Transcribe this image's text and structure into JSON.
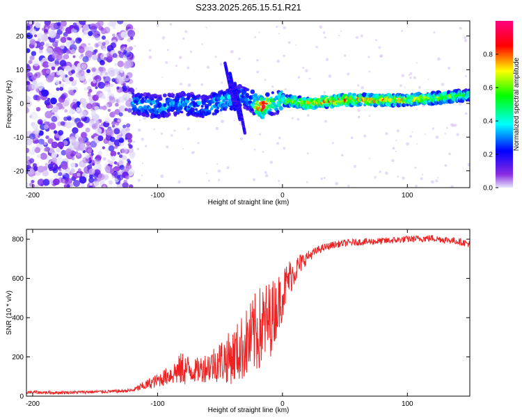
{
  "title": "S233.2025.265.15.51.R21",
  "colors": {
    "snr_line": "#ee2222",
    "colormap": [
      "#e6e6fa",
      "#8a2be2",
      "#0000ff",
      "#00ffff",
      "#00ff00",
      "#ffff00",
      "#ff0000",
      "#ff00ff"
    ]
  },
  "chart_data": [
    {
      "type": "heatmap",
      "title": "S233.2025.265.15.51.R21",
      "xlabel": "Height of straight line (km)",
      "ylabel": "Frequency (Hz)",
      "xlim": [
        -205,
        150
      ],
      "ylim": [
        -25,
        24.5
      ],
      "x_ticks": [
        -200,
        -100,
        0,
        100
      ],
      "x_tick_labels": [
        "-200",
        "-100",
        "0",
        "100"
      ],
      "y_ticks": [
        -20,
        -10,
        0,
        10,
        20
      ],
      "y_tick_labels": [
        "-20",
        "-10",
        "0",
        "10",
        "20"
      ],
      "colorbar": {
        "label": "Normalized spectral amplitude",
        "range": [
          0,
          1
        ],
        "ticks": [
          0.0,
          0.2,
          0.4,
          0.6,
          0.8
        ],
        "tick_labels": [
          "0.0",
          "0.2",
          "0.4",
          "0.6",
          "0.8"
        ]
      },
      "noise_region_x": [
        -205,
        -120
      ],
      "ridge": {
        "x": [
          -120,
          -100,
          -80,
          -60,
          -45,
          -35,
          -25,
          -20,
          -15,
          -10,
          -5,
          0,
          20,
          50,
          80,
          100,
          120,
          150
        ],
        "frequency": [
          0,
          -1,
          0,
          -1,
          1,
          2,
          1,
          -1,
          -1,
          0,
          0,
          1,
          0,
          1,
          1,
          1,
          1.5,
          2.5
        ],
        "amplitude": [
          0.3,
          0.3,
          0.28,
          0.3,
          0.35,
          0.3,
          0.3,
          0.7,
          0.8,
          0.6,
          0.4,
          0.5,
          0.65,
          0.75,
          0.7,
          0.65,
          0.6,
          0.45
        ]
      }
    },
    {
      "type": "line",
      "xlabel": "Height of straight line (km)",
      "ylabel": "SNR (10 * v/v)",
      "xlim": [
        -205,
        150
      ],
      "ylim": [
        0,
        850
      ],
      "x_ticks": [
        -200,
        -100,
        0,
        100
      ],
      "x_tick_labels": [
        "-200",
        "-100",
        "0",
        "100"
      ],
      "y_ticks": [
        0,
        200,
        400,
        600,
        800
      ],
      "y_tick_labels": [
        "0",
        "200",
        "400",
        "600",
        "800"
      ],
      "series": [
        {
          "name": "SNR",
          "x": [
            -205,
            -180,
            -150,
            -130,
            -120,
            -110,
            -100,
            -90,
            -80,
            -70,
            -60,
            -50,
            -40,
            -30,
            -25,
            -20,
            -15,
            -10,
            -5,
            0,
            5,
            10,
            15,
            20,
            25,
            30,
            40,
            50,
            60,
            80,
            100,
            120,
            140,
            150
          ],
          "values": [
            20,
            18,
            22,
            25,
            30,
            55,
            80,
            110,
            140,
            130,
            150,
            180,
            200,
            260,
            290,
            330,
            360,
            390,
            450,
            520,
            600,
            640,
            680,
            710,
            730,
            750,
            770,
            780,
            785,
            790,
            800,
            805,
            790,
            775
          ],
          "noise_amplitude": [
            8,
            8,
            8,
            8,
            10,
            25,
            35,
            50,
            90,
            60,
            80,
            110,
            140,
            180,
            200,
            220,
            220,
            200,
            160,
            130,
            100,
            70,
            50,
            30,
            25,
            20,
            18,
            18,
            18,
            18,
            18,
            18,
            18,
            18
          ]
        }
      ]
    }
  ]
}
